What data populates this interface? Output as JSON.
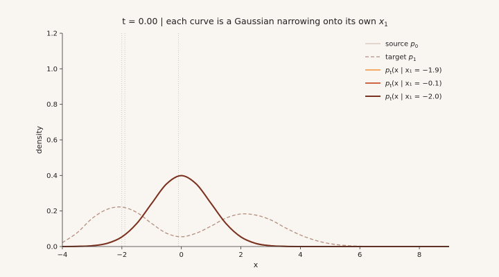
{
  "chart_data": {
    "type": "line",
    "title": {
      "main": "t = 0.00   |   each curve is a Gaussian narrowing onto its own ",
      "var": "x",
      "sub": "1"
    },
    "xlabel": "x",
    "ylabel": "density",
    "xlim": [
      -4,
      9
    ],
    "ylim": [
      0,
      1.2
    ],
    "xticks": [
      -4,
      -2,
      0,
      2,
      4,
      6,
      8
    ],
    "yticks": [
      0.0,
      0.2,
      0.4,
      0.6,
      0.8,
      1.0,
      1.2
    ],
    "grid": false,
    "legend_position": "top-right",
    "vertical_markers": [
      -1.9,
      -0.1,
      -2.0
    ],
    "x": [
      -4.0,
      -3.5,
      -3.0,
      -2.5,
      -2.0,
      -1.5,
      -1.0,
      -0.5,
      0.0,
      0.5,
      1.0,
      1.5,
      2.0,
      2.5,
      3.0,
      3.5,
      4.0,
      4.5,
      5.0,
      5.5,
      6.0,
      6.5,
      7.0,
      7.5,
      8.0,
      8.5,
      9.0
    ],
    "series": [
      {
        "name": "source p0",
        "legend": {
          "pre": "source ",
          "var": "p",
          "sub": "0",
          "post": ""
        },
        "color": "#c7b8aa",
        "dash": "solid",
        "width": 1,
        "y": [
          0.0001,
          0.0009,
          0.0044,
          0.0175,
          0.054,
          0.1295,
          0.242,
          0.3521,
          0.399,
          0.3521,
          0.242,
          0.1295,
          0.054,
          0.0175,
          0.0044,
          0.0009,
          0.0001,
          0.0,
          0.0,
          0.0,
          0.0,
          0.0,
          0.0,
          0.0,
          0.0,
          0.0,
          0.0
        ]
      },
      {
        "name": "target p1",
        "legend": {
          "pre": "target ",
          "var": "p",
          "sub": "1",
          "post": ""
        },
        "color": "#b58e7f",
        "dash": "dashed",
        "width": 1.3,
        "y": [
          0.022,
          0.078,
          0.158,
          0.209,
          0.222,
          0.192,
          0.13,
          0.075,
          0.055,
          0.075,
          0.115,
          0.16,
          0.183,
          0.177,
          0.15,
          0.105,
          0.065,
          0.035,
          0.016,
          0.006,
          0.002,
          0.0,
          0.0,
          0.0,
          0.0,
          0.0,
          0.0
        ]
      },
      {
        "name": "pt(x | x1 = −1.9)",
        "legend": {
          "pre": "",
          "var": "p",
          "sub": "t",
          "post": "(x | x₁ = −1.9)"
        },
        "color": "#f0943a",
        "dash": "solid",
        "width": 1.6,
        "y": [
          0.0001,
          0.0009,
          0.0044,
          0.0175,
          0.054,
          0.1295,
          0.242,
          0.3521,
          0.399,
          0.3521,
          0.242,
          0.1295,
          0.054,
          0.0175,
          0.0044,
          0.0009,
          0.0001,
          0.0,
          0.0,
          0.0,
          0.0,
          0.0,
          0.0,
          0.0,
          0.0,
          0.0,
          0.0
        ]
      },
      {
        "name": "pt(x | x1 = −0.1)",
        "legend": {
          "pre": "",
          "var": "p",
          "sub": "t",
          "post": "(x | x₁ = −0.1)"
        },
        "color": "#c8502a",
        "dash": "solid",
        "width": 1.8,
        "y": [
          0.0001,
          0.0009,
          0.0044,
          0.0175,
          0.054,
          0.1295,
          0.242,
          0.3521,
          0.399,
          0.3521,
          0.242,
          0.1295,
          0.054,
          0.0175,
          0.0044,
          0.0009,
          0.0001,
          0.0,
          0.0,
          0.0,
          0.0,
          0.0,
          0.0,
          0.0,
          0.0,
          0.0,
          0.0
        ]
      },
      {
        "name": "pt(x | x1 = −2.0)",
        "legend": {
          "pre": "",
          "var": "p",
          "sub": "t",
          "post": "(x | x₁ = −2.0)"
        },
        "color": "#7a3322",
        "dash": "solid",
        "width": 2,
        "y": [
          0.0001,
          0.0009,
          0.0044,
          0.0175,
          0.054,
          0.1295,
          0.242,
          0.3521,
          0.399,
          0.3521,
          0.242,
          0.1295,
          0.054,
          0.0175,
          0.0044,
          0.0009,
          0.0001,
          0.0,
          0.0,
          0.0,
          0.0,
          0.0,
          0.0,
          0.0,
          0.0,
          0.0,
          0.0
        ]
      }
    ]
  }
}
